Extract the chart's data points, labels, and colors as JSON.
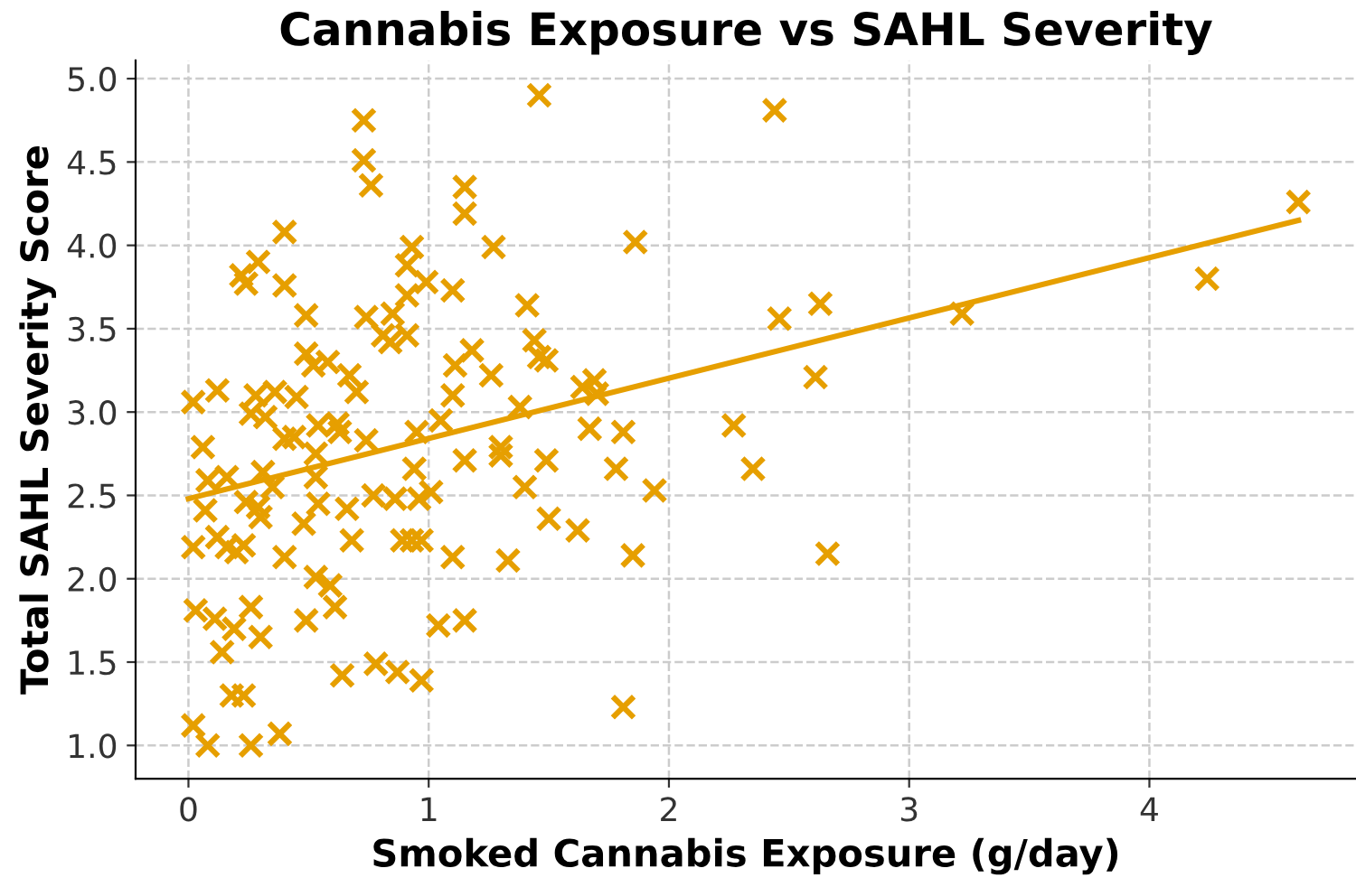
{
  "chart_data": {
    "type": "scatter",
    "title": "Cannabis Exposure vs SAHL Severity",
    "xlabel": "Smoked Cannabis Exposure (g/day)",
    "ylabel": "Total SAHL Severity Score",
    "xlim": [
      -0.22,
      4.86
    ],
    "ylim": [
      0.8,
      5.11
    ],
    "xticks": [
      0,
      1,
      2,
      3,
      4
    ],
    "yticks": [
      {
        "value": 1,
        "label": "1.0"
      },
      1.5,
      {
        "value": 2,
        "label": "2.0"
      },
      2.5,
      {
        "value": 3,
        "label": "3.0"
      },
      3.5,
      {
        "value": 4,
        "label": "4.0"
      },
      4.5,
      {
        "value": 5,
        "label": "5.0"
      }
    ],
    "grid": true,
    "series": [
      {
        "color": "#e69f00",
        "marker": "cross",
        "x": [
          0.73,
          0.73,
          0.76,
          0.4,
          0.29,
          0.22,
          0.24,
          0.4,
          0.49,
          0.93,
          0.91,
          0.99,
          1.1,
          0.91,
          0.85,
          0.74,
          0.81,
          0.84,
          0.91,
          0.49,
          0.52,
          0.58,
          0.67,
          0.7,
          1.11,
          1.1,
          0.02,
          0.12,
          0.28,
          0.36,
          0.45,
          0.26,
          0.32,
          0.4,
          0.44,
          0.54,
          0.62,
          0.63,
          0.74,
          0.95,
          1.05,
          0.06,
          0.53,
          0.08,
          0.16,
          0.31,
          0.35,
          0.53,
          0.94,
          1.01,
          0.07,
          0.24,
          0.29,
          0.3,
          0.54,
          0.66,
          0.77,
          0.86,
          0.96,
          0.48,
          0.68,
          0.02,
          0.12,
          0.16,
          0.2,
          0.23,
          0.4,
          0.89,
          0.93,
          0.97,
          1.1,
          0.53,
          0.59,
          0.61,
          0.03,
          0.11,
          0.19,
          0.26,
          0.3,
          0.49,
          0.14,
          1.04,
          0.64,
          0.78,
          0.87,
          0.97,
          0.18,
          0.23,
          0.02,
          0.08,
          0.26,
          0.38,
          1.46,
          2.44,
          1.15,
          1.15,
          1.27,
          1.86,
          1.41,
          2.46,
          1.44,
          1.18,
          1.46,
          1.49,
          1.26,
          1.38,
          1.64,
          1.69,
          1.7,
          1.67,
          1.81,
          2.27,
          1.3,
          1.15,
          1.3,
          1.49,
          1.78,
          2.35,
          1.4,
          1.94,
          1.5,
          1.62,
          1.33,
          1.85,
          1.15,
          1.81,
          4.62,
          4.24,
          2.63,
          3.22,
          2.61,
          2.66
        ],
        "values": [
          4.75,
          4.51,
          4.36,
          4.08,
          3.9,
          3.82,
          3.77,
          3.76,
          3.58,
          3.99,
          3.88,
          3.78,
          3.73,
          3.7,
          3.59,
          3.57,
          3.46,
          3.42,
          3.46,
          3.35,
          3.28,
          3.3,
          3.22,
          3.12,
          3.28,
          3.1,
          3.06,
          3.13,
          3.1,
          3.12,
          3.09,
          2.99,
          2.97,
          2.84,
          2.85,
          2.92,
          2.93,
          2.88,
          2.83,
          2.88,
          2.95,
          2.79,
          2.75,
          2.59,
          2.61,
          2.64,
          2.55,
          2.61,
          2.66,
          2.52,
          2.41,
          2.46,
          2.43,
          2.37,
          2.45,
          2.42,
          2.5,
          2.48,
          2.48,
          2.33,
          2.23,
          2.19,
          2.25,
          2.19,
          2.16,
          2.2,
          2.13,
          2.23,
          2.23,
          2.23,
          2.13,
          2.01,
          1.96,
          1.83,
          1.81,
          1.76,
          1.7,
          1.83,
          1.65,
          1.75,
          1.56,
          1.72,
          1.42,
          1.49,
          1.44,
          1.39,
          1.3,
          1.3,
          1.12,
          1.0,
          1.0,
          1.07,
          4.9,
          4.81,
          4.35,
          4.19,
          3.99,
          4.02,
          3.64,
          3.56,
          3.43,
          3.37,
          3.33,
          3.31,
          3.22,
          3.03,
          3.15,
          3.19,
          3.11,
          2.9,
          2.88,
          2.92,
          2.79,
          2.71,
          2.74,
          2.71,
          2.66,
          2.66,
          2.55,
          2.53,
          2.36,
          2.29,
          2.11,
          2.14,
          1.75,
          1.23,
          4.26,
          3.8,
          3.65,
          3.59,
          3.21,
          2.15
        ]
      },
      {
        "type": "line",
        "color": "#e69f00",
        "line_style": "solid",
        "x": [
          0,
          4.62
        ],
        "values": [
          2.48,
          4.15
        ]
      }
    ]
  }
}
